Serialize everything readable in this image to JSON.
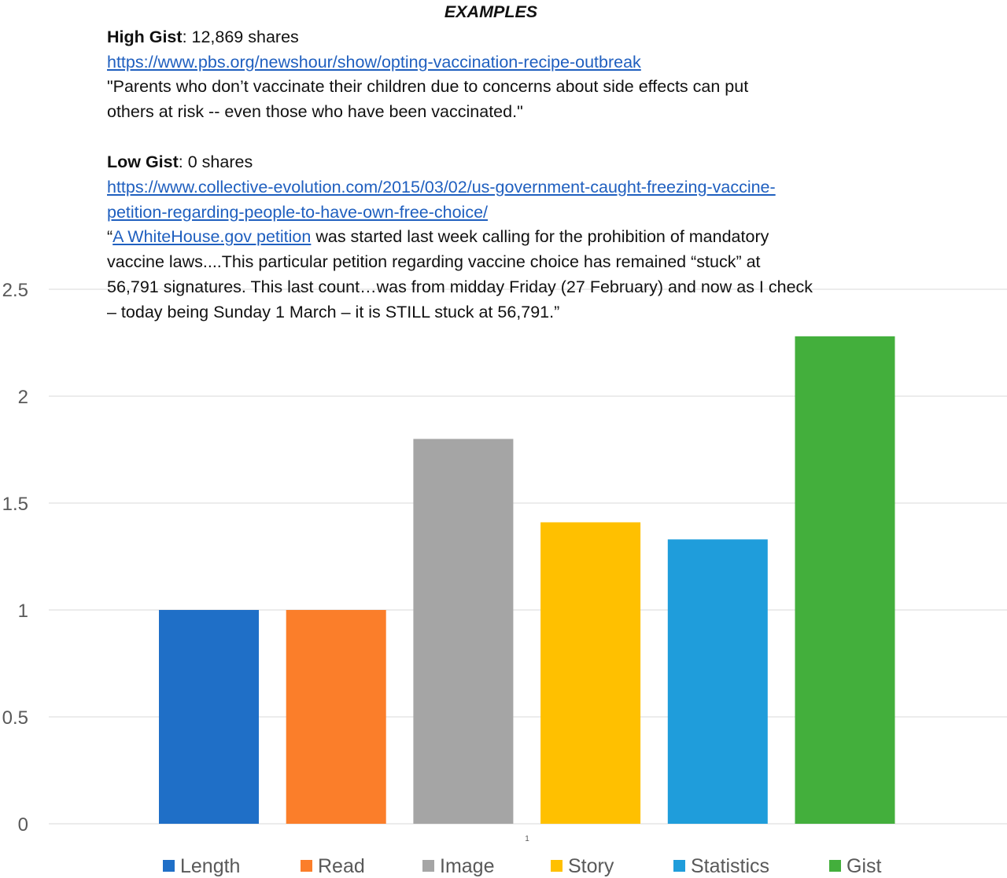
{
  "examples": {
    "heading": "EXAMPLES",
    "high": {
      "label": "High Gist",
      "shares": ": 12,869 shares",
      "url": "https://www.pbs.org/newshour/show/opting-vaccination-recipe-outbreak",
      "quote_line1": "\"Parents who don’t vaccinate their children due to concerns about side effects can put",
      "quote_line2": "others at risk -- even those who have been vaccinated.\""
    },
    "low": {
      "label": "Low Gist",
      "shares": ": 0 shares",
      "url_line1": "https://www.collective-evolution.com/2015/03/02/us-government-caught-freezing-vaccine-",
      "url_line2": "petition-regarding-people-to-have-own-free-choice/",
      "quote_open": "“",
      "quote_link": "A WhiteHouse.gov petition",
      "quote_line1_rest": " was started last week calling for the prohibition of mandatory",
      "quote_line2": "vaccine laws....This particular petition regarding vaccine choice has remained “stuck” at",
      "quote_line3": "56,791 signatures. This last count…was from midday Friday (27 February) and now as I check",
      "quote_line4": "– today being Sunday 1 March – it is STILL stuck at 56,791.”"
    }
  },
  "chart_data": {
    "type": "bar",
    "categories": [
      "1"
    ],
    "series": [
      {
        "name": "Length",
        "values": [
          1.0
        ],
        "color": "#1f6fc7"
      },
      {
        "name": "Read",
        "values": [
          1.0
        ],
        "color": "#fb7e2a"
      },
      {
        "name": "Image",
        "values": [
          1.8
        ],
        "color": "#a5a5a5"
      },
      {
        "name": "Story",
        "values": [
          1.41
        ],
        "color": "#ffc000"
      },
      {
        "name": "Statistics",
        "values": [
          1.33
        ],
        "color": "#1f9ddb"
      },
      {
        "name": "Gist",
        "values": [
          2.28
        ],
        "color": "#43af3c"
      }
    ],
    "ylim": [
      0,
      2.5
    ],
    "yticks": [
      "0",
      "0.5",
      "1",
      "1.5",
      "2",
      "2.5"
    ],
    "ytick_values": [
      0,
      0.5,
      1,
      1.5,
      2,
      2.5
    ],
    "grid": true,
    "legend": "bottom",
    "title": "",
    "xlabel": "",
    "ylabel": ""
  }
}
